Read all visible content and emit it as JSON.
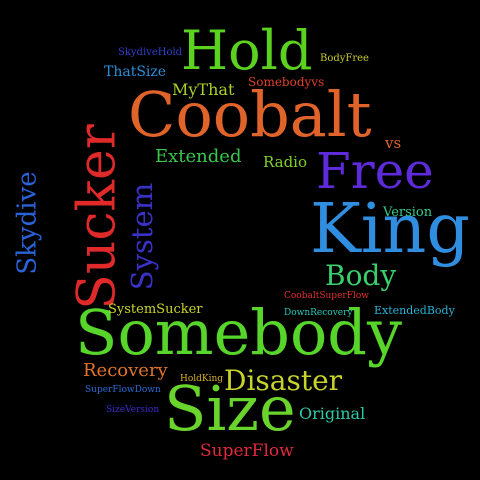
{
  "cloud": {
    "words": [
      {
        "text": "Hold",
        "color": "#5ad21f"
      },
      {
        "text": "Coobalt",
        "color": "#e0632a"
      },
      {
        "text": "Free",
        "color": "#5d2bd9"
      },
      {
        "text": "King",
        "color": "#2f8ee0"
      },
      {
        "text": "Somebody",
        "color": "#57d52a"
      },
      {
        "text": "Size",
        "color": "#69d42b"
      },
      {
        "text": "Sucker",
        "color": "#e02a2a"
      },
      {
        "text": "Skydive",
        "color": "#2a63d9"
      },
      {
        "text": "System",
        "color": "#3a31c9"
      },
      {
        "text": "Body",
        "color": "#39cf6e"
      },
      {
        "text": "Disaster",
        "color": "#c6d32a"
      },
      {
        "text": "Recovery",
        "color": "#e0742a"
      },
      {
        "text": "Extended",
        "color": "#39c84c"
      },
      {
        "text": "MyThat",
        "color": "#a9d12a"
      },
      {
        "text": "Radio",
        "color": "#7fd12a"
      },
      {
        "text": "vs",
        "color": "#e0642a"
      },
      {
        "text": "Version",
        "color": "#33c98e"
      },
      {
        "text": "Original",
        "color": "#2ec9a6"
      },
      {
        "text": "SuperFlow",
        "color": "#e02a3e"
      },
      {
        "text": "ThatSize",
        "color": "#2a8fd8"
      },
      {
        "text": "SkydiveHold",
        "color": "#2d3fce"
      },
      {
        "text": "BodyFree",
        "color": "#c9c82a"
      },
      {
        "text": "Somebodyvs",
        "color": "#e0402a"
      },
      {
        "text": "SystemSucker",
        "color": "#c9d42a"
      },
      {
        "text": "CoobaltSuperFlow",
        "color": "#e0302a"
      },
      {
        "text": "DownRecovery",
        "color": "#2ac9b9"
      },
      {
        "text": "ExtendedBody",
        "color": "#2ab4d6"
      },
      {
        "text": "HoldKing",
        "color": "#d6b12a"
      },
      {
        "text": "SuperFlowDown",
        "color": "#2a6bd6"
      },
      {
        "text": "SizeVersion",
        "color": "#3a2bd0"
      }
    ]
  }
}
